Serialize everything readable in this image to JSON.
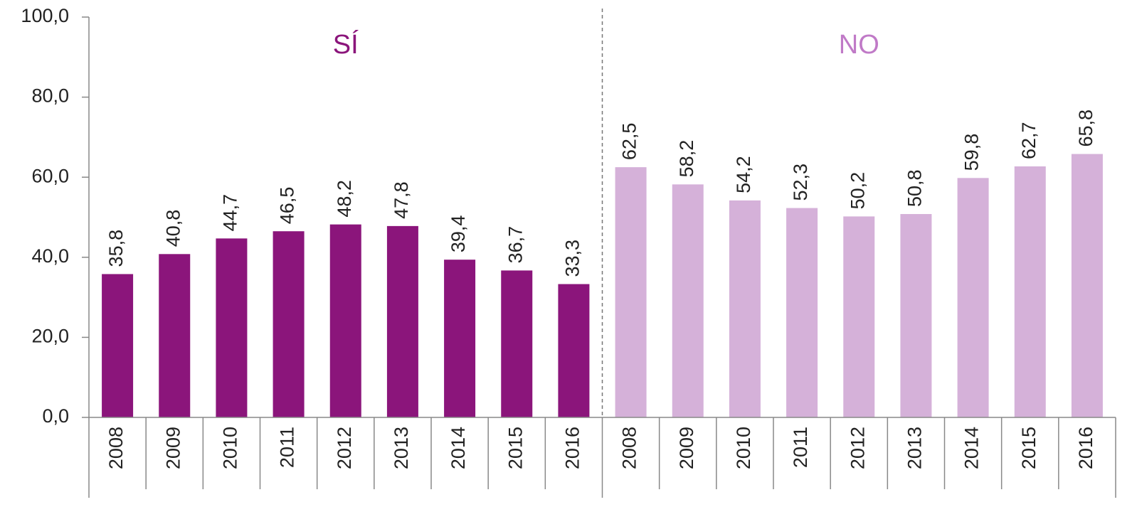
{
  "chart_data": {
    "type": "bar",
    "categories": [
      "2008",
      "2009",
      "2010",
      "2011",
      "2012",
      "2013",
      "2014",
      "2015",
      "2016"
    ],
    "series": [
      {
        "name": "SÍ",
        "color": "#8b157b",
        "label_color": "#8b157b",
        "values": [
          35.8,
          40.8,
          44.7,
          46.5,
          48.2,
          47.8,
          39.4,
          36.7,
          33.3
        ],
        "value_labels": [
          "35,8",
          "40,8",
          "44,7",
          "46,5",
          "48,2",
          "47,8",
          "39,4",
          "36,7",
          "33,3"
        ]
      },
      {
        "name": "NO",
        "color": "#d5b1d9",
        "label_color": "#c07ac7",
        "values": [
          62.5,
          58.2,
          54.2,
          52.3,
          50.2,
          50.8,
          59.8,
          62.7,
          65.8
        ],
        "value_labels": [
          "62,5",
          "58,2",
          "54,2",
          "52,3",
          "50,2",
          "50,8",
          "59,8",
          "62,7",
          "65,8"
        ]
      }
    ],
    "ylim": [
      0,
      100
    ],
    "yticks": [
      {
        "value": 0,
        "label": "0,0"
      },
      {
        "value": 20,
        "label": "20,0"
      },
      {
        "value": 40,
        "label": "40,0"
      },
      {
        "value": 60,
        "label": "60,0"
      },
      {
        "value": 80,
        "label": "80,0"
      },
      {
        "value": 100,
        "label": "100,0"
      }
    ],
    "grid": false
  }
}
